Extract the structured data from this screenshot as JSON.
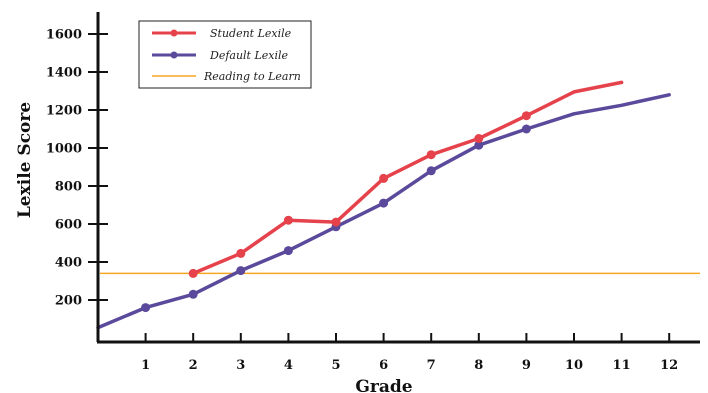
{
  "chart_data": {
    "type": "line",
    "title": "",
    "xlabel": "Grade",
    "ylabel": "Lexile Score",
    "xlim": [
      0,
      12.6
    ],
    "ylim": [
      0,
      1700
    ],
    "x_ticks": [
      "1",
      "2",
      "3",
      "4",
      "5",
      "6",
      "7",
      "8",
      "9",
      "10",
      "11",
      "12"
    ],
    "y_ticks": [
      "200",
      "400",
      "600",
      "800",
      "1000",
      "1200",
      "1400",
      "1600"
    ],
    "grid": false,
    "legend_position": "top-left",
    "series": [
      {
        "name": "Student Lexile",
        "color": "#e5424b",
        "markers": true,
        "points": [
          [
            2,
            340
          ],
          [
            3,
            445
          ],
          [
            4,
            620
          ],
          [
            5,
            610
          ],
          [
            6,
            840
          ],
          [
            7,
            965
          ],
          [
            8,
            1050
          ],
          [
            9,
            1170
          ],
          [
            10,
            1295
          ],
          [
            11,
            1345
          ]
        ],
        "marker_x": [
          2,
          3,
          4,
          5,
          6,
          7,
          8,
          9
        ]
      },
      {
        "name": "Default Lexile",
        "color": "#5b4a9b",
        "markers": true,
        "points": [
          [
            0,
            55
          ],
          [
            1,
            160
          ],
          [
            2,
            230
          ],
          [
            3,
            355
          ],
          [
            4,
            460
          ],
          [
            5,
            585
          ],
          [
            6,
            710
          ],
          [
            7,
            880
          ],
          [
            8,
            1015
          ],
          [
            9,
            1100
          ],
          [
            10,
            1180
          ],
          [
            11,
            1225
          ],
          [
            12,
            1280
          ]
        ],
        "marker_x": [
          1,
          2,
          3,
          4,
          5,
          6,
          7,
          8,
          9
        ]
      },
      {
        "name": "Reading to Learn",
        "color": "#f5a623",
        "markers": false,
        "type": "hline",
        "y": 340
      }
    ]
  }
}
